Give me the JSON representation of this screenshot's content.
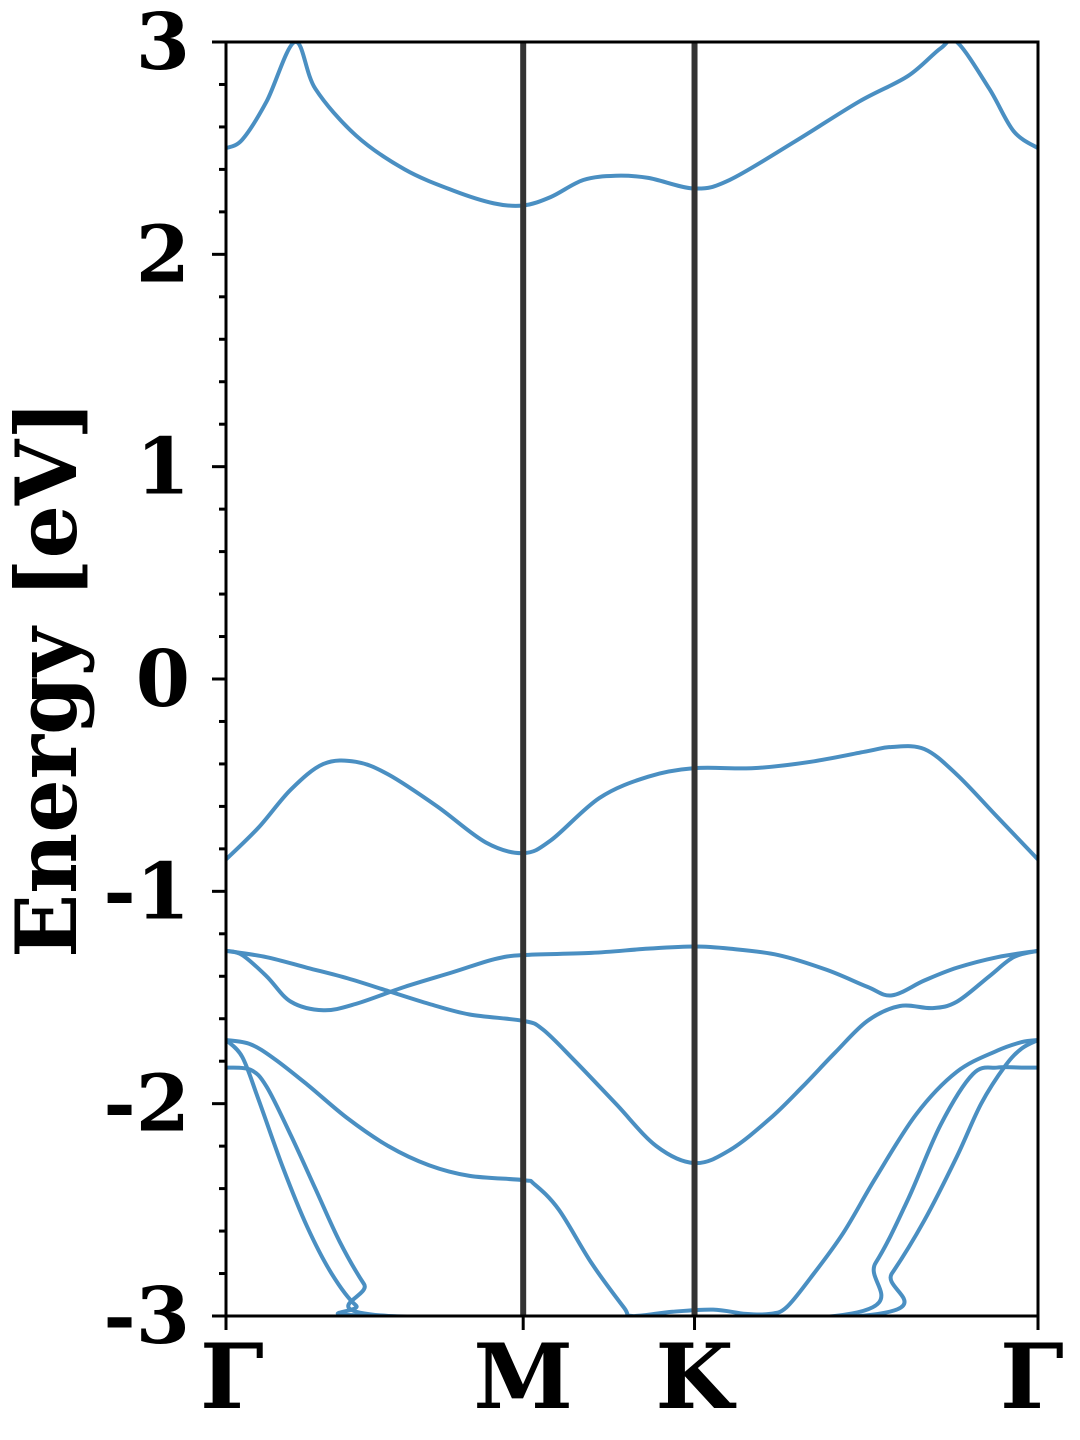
{
  "chart_data": {
    "type": "line",
    "title": "",
    "xlabel": "",
    "ylabel": "Energy [eV]",
    "ylim": [
      -3,
      3
    ],
    "y_ticks": [
      "3",
      "2",
      "1",
      "0",
      "-1",
      "-2",
      "-3"
    ],
    "y_tick_values": [
      3,
      2,
      1,
      0,
      -1,
      -2,
      -3
    ],
    "y_minor_step": 0.2,
    "x_range": [
      0,
      1
    ],
    "high_symmetry_points": [
      {
        "label": "Γ",
        "x": 0.0
      },
      {
        "label": "M",
        "x": 0.366
      },
      {
        "label": "K",
        "x": 0.577
      },
      {
        "label": "Γ",
        "x": 1.0
      }
    ],
    "divider_points": [
      0.366,
      0.577
    ],
    "grid": false,
    "legend": "none",
    "line_color": "#4A8FC2",
    "divider_color": "#333333",
    "series": [
      {
        "x": [
          0,
          0.02,
          0.05,
          0.085,
          0.11,
          0.16,
          0.22,
          0.28,
          0.33,
          0.366,
          0.4,
          0.44,
          0.48,
          0.52,
          0.577,
          0.62,
          0.7,
          0.78,
          0.84,
          0.88,
          0.9,
          0.94,
          0.97,
          1.0
        ],
        "y": [
          2.5,
          2.54,
          2.72,
          3.0,
          2.78,
          2.56,
          2.4,
          2.3,
          2.24,
          2.23,
          2.27,
          2.35,
          2.37,
          2.36,
          2.31,
          2.35,
          2.53,
          2.72,
          2.84,
          2.97,
          3.0,
          2.78,
          2.58,
          2.5
        ]
      },
      {
        "x": [
          0,
          0.04,
          0.08,
          0.12,
          0.16,
          0.2,
          0.26,
          0.32,
          0.366,
          0.4,
          0.46,
          0.52,
          0.577,
          0.65,
          0.72,
          0.79,
          0.82,
          0.86,
          0.9,
          0.95,
          1.0
        ],
        "y": [
          -0.85,
          -0.7,
          -0.52,
          -0.4,
          -0.39,
          -0.45,
          -0.6,
          -0.77,
          -0.82,
          -0.76,
          -0.56,
          -0.46,
          -0.42,
          -0.42,
          -0.39,
          -0.34,
          -0.32,
          -0.33,
          -0.45,
          -0.65,
          -0.85
        ]
      },
      {
        "x": [
          0,
          0.02,
          0.05,
          0.08,
          0.12,
          0.16,
          0.22,
          0.28,
          0.33,
          0.366,
          0.45,
          0.52,
          0.577,
          0.62,
          0.68,
          0.74,
          0.79,
          0.82,
          0.86,
          0.9,
          0.95,
          1.0
        ],
        "y": [
          -1.28,
          -1.3,
          -1.4,
          -1.52,
          -1.56,
          -1.53,
          -1.45,
          -1.38,
          -1.32,
          -1.3,
          -1.29,
          -1.27,
          -1.26,
          -1.27,
          -1.3,
          -1.37,
          -1.45,
          -1.49,
          -1.42,
          -1.36,
          -1.31,
          -1.28
        ]
      },
      {
        "x": [
          0,
          0.05,
          0.1,
          0.15,
          0.2,
          0.25,
          0.3,
          0.366,
          0.39,
          0.43,
          0.48,
          0.53,
          0.577,
          0.62,
          0.67,
          0.71,
          0.75,
          0.79,
          0.83,
          0.87,
          0.9,
          0.94,
          0.97,
          1.0
        ],
        "y": [
          -1.28,
          -1.31,
          -1.36,
          -1.41,
          -1.47,
          -1.53,
          -1.58,
          -1.61,
          -1.65,
          -1.8,
          -2.0,
          -2.2,
          -2.28,
          -2.22,
          -2.07,
          -1.92,
          -1.76,
          -1.61,
          -1.54,
          -1.55,
          -1.52,
          -1.4,
          -1.31,
          -1.28
        ]
      },
      {
        "x": [
          0,
          0.03,
          0.06,
          0.1,
          0.15,
          0.2,
          0.25,
          0.3,
          0.366,
          0.38,
          0.41,
          0.45,
          0.49,
          0.5,
          0.55,
          0.6,
          0.64,
          0.67,
          0.69,
          0.72,
          0.76,
          0.8,
          0.85,
          0.9,
          0.95,
          0.98,
          1.0
        ],
        "y": [
          -1.7,
          -1.72,
          -1.79,
          -1.91,
          -2.07,
          -2.2,
          -2.29,
          -2.34,
          -2.36,
          -2.38,
          -2.5,
          -2.75,
          -2.96,
          -3.0,
          -2.98,
          -2.97,
          -2.99,
          -2.99,
          -2.96,
          -2.82,
          -2.61,
          -2.35,
          -2.05,
          -1.85,
          -1.75,
          -1.71,
          -1.7
        ]
      },
      {
        "x": [
          0,
          0.03,
          0.05,
          0.08,
          0.11,
          0.14,
          0.17,
          0.2,
          0.75,
          0.8,
          0.84,
          0.88,
          0.92,
          0.95,
          0.98,
          1.0
        ],
        "y": [
          -1.83,
          -1.84,
          -1.92,
          -2.15,
          -2.4,
          -2.65,
          -2.85,
          -3.0,
          -3.0,
          -2.75,
          -2.45,
          -2.1,
          -1.86,
          -1.83,
          -1.83,
          -1.83
        ]
      },
      {
        "x": [
          0,
          0.02,
          0.04,
          0.07,
          0.1,
          0.13,
          0.16,
          0.19,
          0.78,
          0.82,
          0.86,
          0.9,
          0.93,
          0.96,
          0.98,
          1.0
        ],
        "y": [
          -1.7,
          -1.78,
          -1.98,
          -2.3,
          -2.58,
          -2.8,
          -2.95,
          -3.0,
          -3.0,
          -2.8,
          -2.55,
          -2.25,
          -2.0,
          -1.82,
          -1.74,
          -1.7
        ]
      }
    ]
  }
}
